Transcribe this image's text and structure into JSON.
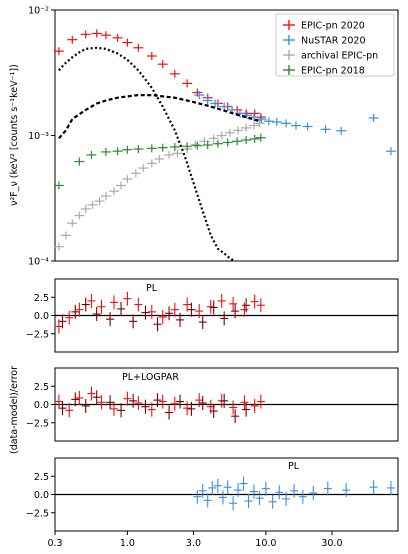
{
  "chart_data": [
    {
      "type": "scatter",
      "panel": "spectrum",
      "xscale": "log",
      "yscale": "log",
      "xlim": [
        0.3,
        90
      ],
      "ylim": [
        0.0001,
        0.01
      ],
      "ylabel": "ν²F_ν (keV² [counts s⁻¹keV⁻¹])",
      "ytick_labels": [
        "10⁻⁴",
        "10⁻³",
        "10⁻²"
      ],
      "ytick_values": [
        0.0001,
        0.001,
        0.01
      ],
      "legend": {
        "placement": "top-right",
        "entries": [
          "EPIC-pn 2020",
          "NuSTAR 2020",
          "archival EPIC-pn",
          "EPIC-pn 2018"
        ]
      },
      "series": [
        {
          "name": "EPIC-pn 2020",
          "color": "#ee1111",
          "kind": "errorbar",
          "x": [
            0.32,
            0.4,
            0.5,
            0.6,
            0.7,
            0.85,
            1.0,
            1.2,
            1.5,
            1.8,
            2.2,
            2.7,
            3.2,
            3.8,
            4.5,
            5.3,
            6.2,
            7.2,
            8.3,
            9.2
          ],
          "y": [
            0.0047,
            0.0058,
            0.0064,
            0.0065,
            0.0063,
            0.006,
            0.0055,
            0.005,
            0.0043,
            0.0037,
            0.0031,
            0.0026,
            0.0022,
            0.002,
            0.0018,
            0.0017,
            0.0016,
            0.0015,
            0.0015,
            0.0014
          ]
        },
        {
          "name": "NuSTAR 2020",
          "color": "#3a8ee0",
          "kind": "errorbar",
          "x": [
            3.3,
            3.8,
            4.3,
            5.0,
            5.7,
            6.5,
            7.3,
            8.2,
            9.3,
            10.5,
            12.0,
            14.0,
            16.5,
            20.0,
            27.0,
            35.0,
            60.0,
            80.0
          ],
          "y": [
            0.0021,
            0.0019,
            0.0018,
            0.0017,
            0.0016,
            0.0015,
            0.00145,
            0.0014,
            0.00135,
            0.0013,
            0.00128,
            0.00125,
            0.0012,
            0.00118,
            0.00112,
            0.00109,
            0.00138,
            0.00075
          ]
        },
        {
          "name": "archival EPIC-pn",
          "color": "#aaaaaa",
          "kind": "errorbar",
          "x": [
            0.32,
            0.36,
            0.4,
            0.45,
            0.5,
            0.56,
            0.63,
            0.7,
            0.8,
            0.9,
            1.0,
            1.15,
            1.3,
            1.5,
            1.7,
            2.0,
            2.3,
            2.7,
            3.1,
            3.6,
            4.2,
            4.8,
            5.5,
            6.3,
            7.2,
            8.2,
            9.0
          ],
          "y": [
            0.00013,
            0.00016,
            0.0002,
            0.00023,
            0.00026,
            0.00028,
            0.0003,
            0.00033,
            0.00036,
            0.0004,
            0.00045,
            0.0005,
            0.00055,
            0.0006,
            0.00065,
            0.0007,
            0.00072,
            0.00078,
            0.00085,
            0.0009,
            0.00095,
            0.001,
            0.00105,
            0.0011,
            0.00115,
            0.0012,
            0.00125
          ]
        },
        {
          "name": "EPIC-pn 2018",
          "color": "#2e8b2e",
          "kind": "errorbar",
          "x": [
            0.32,
            0.45,
            0.55,
            0.7,
            0.85,
            1.0,
            1.2,
            1.5,
            1.8,
            2.2,
            2.7,
            3.2,
            3.8,
            4.5,
            5.3,
            6.2,
            7.2,
            8.3,
            9.2
          ],
          "y": [
            0.0004,
            0.00062,
            0.0007,
            0.00074,
            0.00075,
            0.00077,
            0.00078,
            0.00079,
            0.0008,
            0.00081,
            0.00082,
            0.00083,
            0.00084,
            0.00086,
            0.00088,
            0.0009,
            0.00092,
            0.00094,
            0.00096
          ]
        },
        {
          "name": "",
          "color": "#000000",
          "kind": "dotted-model",
          "x": [
            0.32,
            0.35,
            0.4,
            0.45,
            0.5,
            0.6,
            0.7,
            0.85,
            1.0,
            1.2,
            1.5,
            1.8,
            2.2,
            2.6,
            3.0,
            3.5,
            4.0,
            4.5,
            5.0,
            5.5,
            6.0
          ],
          "y": [
            0.0033,
            0.0037,
            0.0042,
            0.0046,
            0.0049,
            0.005,
            0.0049,
            0.0045,
            0.004,
            0.0033,
            0.0024,
            0.0017,
            0.0011,
            0.00068,
            0.00042,
            0.00025,
            0.00016,
            0.000125,
            0.000115,
            0.000105,
            0.0001
          ]
        },
        {
          "name": "",
          "color": "#000000",
          "kind": "dashed-model",
          "x": [
            0.32,
            0.36,
            0.4,
            0.5,
            0.6,
            0.7,
            0.85,
            1.0,
            1.2,
            1.5,
            1.8,
            2.2,
            2.7,
            3.3,
            4.0,
            5.0,
            6.0,
            7.5,
            9.0
          ],
          "y": [
            0.00095,
            0.0011,
            0.00135,
            0.0016,
            0.0018,
            0.0019,
            0.002,
            0.00205,
            0.0021,
            0.0021,
            0.00205,
            0.002,
            0.0019,
            0.0018,
            0.0017,
            0.00158,
            0.00148,
            0.00138,
            0.0013
          ]
        }
      ]
    },
    {
      "type": "scatter",
      "panel": "residuals-1",
      "label": "PL",
      "xscale": "log",
      "xlim": [
        0.3,
        90
      ],
      "ylim": [
        -5,
        5
      ],
      "ytick_labels": [
        "2.5",
        "0.0",
        "−2.5"
      ],
      "ytick_values": [
        2.5,
        0,
        -2.5
      ],
      "series": [
        {
          "name": "EPIC-pn 2020",
          "color": "#ee1111",
          "x": [
            0.32,
            0.38,
            0.45,
            0.55,
            0.65,
            0.8,
            1.0,
            1.2,
            1.5,
            1.8,
            2.2,
            2.7,
            3.3,
            4.0,
            4.8,
            5.8,
            7.0,
            8.3,
            9.2
          ],
          "y": [
            -1.5,
            -0.3,
            0.8,
            2.0,
            1.2,
            1.8,
            2.3,
            1.5,
            0.5,
            -0.2,
            0.8,
            1.5,
            0.6,
            1.2,
            2.0,
            1.6,
            0.8,
            1.9,
            1.4
          ]
        },
        {
          "name": "archival EPIC-pn",
          "color": "#7a0000",
          "x": [
            0.34,
            0.42,
            0.5,
            0.6,
            0.75,
            0.9,
            1.1,
            1.35,
            1.65,
            2.0,
            2.4,
            2.9,
            3.5,
            4.2,
            5.0,
            6.0,
            7.2
          ],
          "y": [
            -0.8,
            0.5,
            1.5,
            0.2,
            -0.5,
            0.9,
            -0.8,
            0.4,
            -1.2,
            0.3,
            -0.6,
            0.8,
            -0.9,
            1.1,
            -0.4,
            0.6,
            1.4
          ]
        }
      ]
    },
    {
      "type": "scatter",
      "panel": "residuals-2",
      "label": "PL+LOGPAR",
      "xscale": "log",
      "xlim": [
        0.3,
        90
      ],
      "ylim": [
        -5,
        5
      ],
      "ytick_labels": [
        "2.5",
        "0.0",
        "−2.5"
      ],
      "ytick_values": [
        2.5,
        0,
        -2.5
      ],
      "series": [
        {
          "name": "EPIC-pn 2020",
          "color": "#ee1111",
          "x": [
            0.32,
            0.38,
            0.45,
            0.55,
            0.65,
            0.8,
            1.0,
            1.2,
            1.5,
            1.8,
            2.2,
            2.7,
            3.3,
            4.0,
            4.8,
            5.8,
            7.0,
            8.3,
            9.2
          ],
          "y": [
            0.4,
            -0.8,
            0.9,
            1.5,
            0.3,
            -0.6,
            0.8,
            0.2,
            -0.7,
            0.4,
            0.1,
            -0.5,
            0.6,
            -0.3,
            0.5,
            -0.4,
            0.3,
            -0.2,
            0.4
          ]
        },
        {
          "name": "archival EPIC-pn",
          "color": "#7a0000",
          "x": [
            0.34,
            0.42,
            0.5,
            0.6,
            0.75,
            0.9,
            1.1,
            1.35,
            1.65,
            2.0,
            2.4,
            2.9,
            3.5,
            4.2,
            5.0,
            6.0,
            7.2
          ],
          "y": [
            -0.5,
            0.7,
            -0.2,
            1.0,
            0.3,
            -0.8,
            0.5,
            -0.3,
            0.6,
            -1.1,
            0.4,
            -0.6,
            0.2,
            -0.9,
            0.5,
            -1.6,
            -0.7
          ]
        }
      ]
    },
    {
      "type": "scatter",
      "panel": "residuals-3",
      "label": "PL",
      "xscale": "log",
      "xlim": [
        0.3,
        90
      ],
      "ylim": [
        -5,
        5
      ],
      "ytick_labels": [
        "2.5",
        "0.0",
        "−2.5"
      ],
      "ytick_values": [
        2.5,
        0,
        -2.5
      ],
      "xtick_labels": [
        "0.3",
        "1.0",
        "3.0",
        "10.0",
        "30.0"
      ],
      "xtick_values": [
        0.3,
        1.0,
        3.0,
        10.0,
        30.0
      ],
      "series": [
        {
          "name": "NuSTAR 2020",
          "color": "#3a8ee0",
          "x": [
            3.2,
            3.5,
            3.8,
            4.1,
            4.5,
            4.9,
            5.3,
            5.8,
            6.3,
            6.9,
            7.5,
            8.2,
            9.0,
            10.0,
            11.2,
            12.5,
            14.0,
            16.0,
            18.5,
            22.0,
            28.0,
            38.0,
            60.0,
            80.0
          ],
          "y": [
            -0.3,
            0.5,
            -0.8,
            0.9,
            1.2,
            -0.4,
            1.0,
            -1.2,
            0.6,
            1.5,
            -0.9,
            0.4,
            -0.5,
            0.8,
            -1.0,
            0.3,
            -0.6,
            0.5,
            -0.3,
            0.2,
            0.8,
            0.6,
            1.0,
            0.9
          ]
        }
      ]
    }
  ],
  "shared_ylabel": "(data-model)/error",
  "colors": {
    "epic2020": "#ee1111",
    "nustar": "#3a8ee0",
    "archival": "#aaaaaa",
    "epic2018": "#2e8b2e",
    "residual_dark": "#7a0000"
  }
}
